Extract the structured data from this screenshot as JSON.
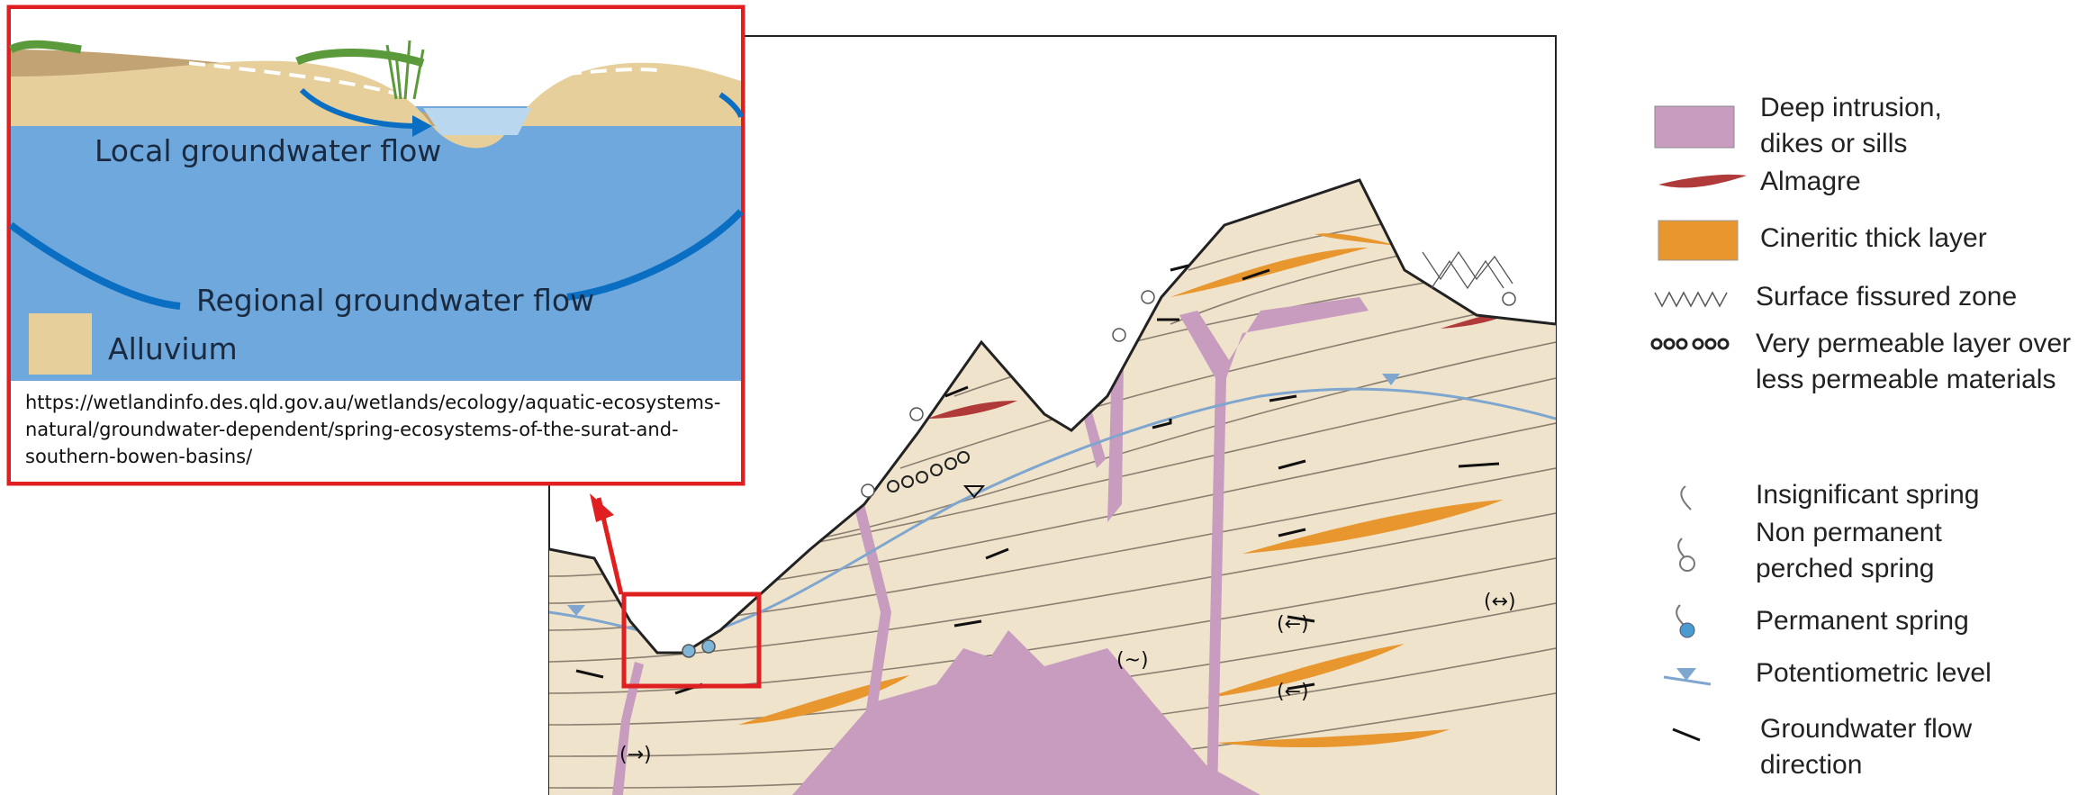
{
  "inset": {
    "local_flow_label": "Local groundwater flow",
    "regional_flow_label": "Regional groundwater flow",
    "alluvium_label": "Alluvium",
    "source_url": "https://wetlandinfo.des.qld.gov.au/wetlands/ecology/aquatic-ecosystems-natural/groundwater-dependent/spring-ecosystems-of-the-surat-and-southern-bowen-basins/"
  },
  "legend": {
    "items": [
      {
        "label": "Deep intrusion,\ndikes or sills",
        "icon": "purple-rectangle"
      },
      {
        "label": "Almagre",
        "icon": "red-lens"
      },
      {
        "label": "Cineritic thick layer",
        "icon": "orange-rectangle"
      },
      {
        "label": "Surface fissured zone",
        "icon": "zigzag-hatch"
      },
      {
        "label": "Very permeable layer over\nless permeable materials",
        "icon": "circles-row"
      },
      {
        "label": "Insignificant spring",
        "icon": "spring-arrow"
      },
      {
        "label": "Non permanent\nperched spring",
        "icon": "spring-open-circle"
      },
      {
        "label": "Permanent spring",
        "icon": "spring-filled-circle"
      },
      {
        "label": "Potentiometric level",
        "icon": "blue-triangle"
      },
      {
        "label": "Groundwater flow\ndirection",
        "icon": "black-arrow"
      }
    ]
  },
  "colors": {
    "intrusion": "#c79cbf",
    "almagre": "#b03a3a",
    "cineritic": "#e8962e",
    "strata": "#efe3cc",
    "water_table": "#7fa6cf",
    "inset_water": "#6fa8dd",
    "alluvium": "#e6cf9a",
    "highlight_box": "#e02020"
  }
}
